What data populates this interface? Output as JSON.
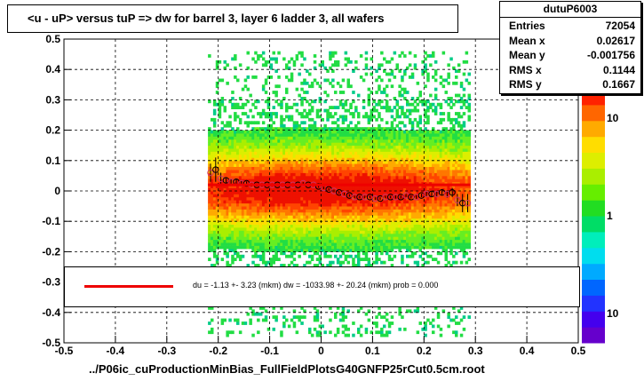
{
  "chart_data": {
    "type": "scatter",
    "title": "<u - uP>       versus  tuP =>  dw for barrel 3, layer 6 ladder 3, all wafers",
    "xlabel": "../P06ic_cuProductionMinBias_FullFieldPlotsG40GNFP25rCut0.5cm.root",
    "ylabel": "",
    "xlim": [
      -0.5,
      0.5
    ],
    "ylim": [
      -0.5,
      0.5
    ],
    "x_ticks": [
      "-0.5",
      "-0.4",
      "-0.3",
      "-0.2",
      "-0.1",
      "0",
      "0.1",
      "0.2",
      "0.3",
      "0.4",
      "0.5"
    ],
    "y_ticks": [
      "-0.5",
      "-0.4",
      "-0.3",
      "-0.2",
      "-0.1",
      "0",
      "0.1",
      "0.2",
      "0.3",
      "0.4",
      "0.5"
    ],
    "x_tick_values": [
      -0.5,
      -0.4,
      -0.3,
      -0.2,
      -0.1,
      0,
      0.1,
      0.2,
      0.3,
      0.4,
      0.5
    ],
    "y_tick_values": [
      -0.5,
      -0.4,
      -0.3,
      -0.2,
      -0.1,
      0,
      0.1,
      0.2,
      0.3,
      0.4,
      0.5
    ],
    "grid": true,
    "colorbar_labels": [
      "10",
      "1",
      "10"
    ],
    "colorbar_label_values": [
      10,
      1,
      0.1
    ],
    "histogram_x_range": [
      -0.22,
      0.29
    ],
    "profile_points": {
      "x": [
        -0.215,
        -0.205,
        -0.195,
        -0.185,
        -0.175,
        -0.165,
        -0.155,
        -0.145,
        -0.135,
        -0.125,
        -0.115,
        -0.105,
        -0.095,
        -0.085,
        -0.075,
        -0.065,
        -0.055,
        -0.045,
        -0.035,
        -0.025,
        -0.015,
        -0.005,
        0.005,
        0.015,
        0.025,
        0.035,
        0.045,
        0.055,
        0.065,
        0.075,
        0.085,
        0.095,
        0.105,
        0.115,
        0.125,
        0.135,
        0.145,
        0.155,
        0.165,
        0.175,
        0.185,
        0.195,
        0.205,
        0.215,
        0.225,
        0.235,
        0.245,
        0.255,
        0.265,
        0.275,
        0.285
      ],
      "y": [
        0.06,
        0.07,
        0.04,
        0.035,
        0.03,
        0.03,
        0.025,
        0.025,
        0.02,
        0.02,
        0.02,
        0.02,
        0.02,
        0.02,
        0.02,
        0.02,
        0.02,
        0.02,
        0.025,
        0.02,
        0.02,
        0.015,
        0.01,
        0.005,
        0.0,
        -0.005,
        -0.01,
        -0.015,
        -0.02,
        -0.02,
        -0.02,
        -0.02,
        -0.025,
        -0.025,
        -0.02,
        -0.02,
        -0.02,
        -0.02,
        -0.015,
        -0.02,
        -0.02,
        -0.015,
        -0.01,
        -0.01,
        -0.01,
        -0.005,
        -0.01,
        -0.005,
        -0.03,
        -0.04,
        -0.04
      ],
      "err": [
        0.03,
        0.04,
        0.02,
        0.01,
        0.01,
        0.01,
        0.008,
        0.006,
        0.005,
        0.005,
        0.005,
        0.004,
        0.004,
        0.004,
        0.004,
        0.004,
        0.004,
        0.004,
        0.004,
        0.004,
        0.004,
        0.004,
        0.004,
        0.004,
        0.004,
        0.004,
        0.004,
        0.004,
        0.004,
        0.004,
        0.004,
        0.004,
        0.004,
        0.004,
        0.004,
        0.004,
        0.005,
        0.005,
        0.005,
        0.005,
        0.006,
        0.006,
        0.007,
        0.008,
        0.01,
        0.01,
        0.012,
        0.015,
        0.02,
        0.03,
        0.03
      ]
    },
    "fit_line": {
      "x": [
        -0.22,
        0.29
      ],
      "y": [
        0.02,
        0.02
      ]
    }
  },
  "stats": {
    "name": "dutuP6003",
    "rows": [
      {
        "key": "Entries",
        "value": "72054"
      },
      {
        "key": "Mean x",
        "value": "0.02617"
      },
      {
        "key": "Mean y",
        "value": "-0.001756"
      },
      {
        "key": "RMS x",
        "value": "0.1144"
      },
      {
        "key": "RMS y",
        "value": "0.1667"
      }
    ]
  },
  "legend": {
    "text": "du =   -1.13 +-  3.23 (mkm) dw = -1033.98 +- 20.24 (mkm) prob = 0.000"
  },
  "colors": {
    "fit": "#ee0000",
    "profile_marker": "#cc3366"
  }
}
